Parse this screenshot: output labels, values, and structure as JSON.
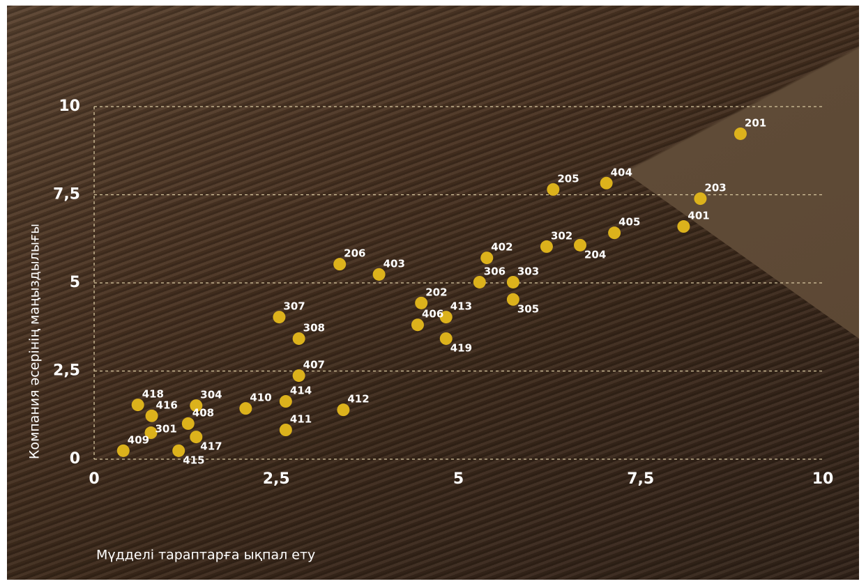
{
  "chart_data": {
    "type": "scatter",
    "x_label": "Мүдделі тараптарға ықпал ету",
    "y_label": "Компания әсерінің маңыздылығы",
    "point_labels": [
      "201",
      "205",
      "404",
      "203",
      "401",
      "405",
      "302",
      "204",
      "402",
      "206",
      "403",
      "306",
      "303",
      "305",
      "202",
      "413",
      "406",
      "419",
      "307",
      "308",
      "407",
      "418",
      "304",
      "416",
      "410",
      "414",
      "412",
      "408",
      "301",
      "417",
      "411",
      "409",
      "415"
    ],
    "x": [
      8.87,
      6.3,
      7.03,
      8.32,
      8.09,
      7.14,
      6.21,
      6.67,
      5.39,
      3.37,
      3.91,
      5.29,
      5.75,
      5.75,
      4.49,
      4.83,
      4.44,
      4.83,
      2.54,
      2.81,
      2.81,
      0.6,
      1.4,
      0.79,
      2.08,
      2.63,
      3.42,
      1.29,
      0.78,
      1.4,
      2.63,
      0.4,
      1.16
    ],
    "values": [
      9.23,
      7.65,
      7.83,
      7.39,
      6.6,
      6.42,
      6.03,
      6.07,
      5.71,
      5.53,
      5.24,
      5.02,
      5.02,
      4.53,
      4.43,
      4.03,
      3.81,
      3.42,
      4.03,
      3.42,
      2.37,
      1.54,
      1.52,
      1.23,
      1.44,
      1.64,
      1.4,
      1.01,
      0.75,
      0.63,
      0.83,
      0.24,
      0.24
    ],
    "color": "#dcb21c",
    "xlim": [
      0,
      10
    ],
    "ylim": [
      0,
      10
    ],
    "xticks": [
      0,
      {
        "value": 2.5,
        "label": "2,5"
      },
      5,
      {
        "value": 7.5,
        "label": "7,5"
      },
      10
    ],
    "yticks": [
      0,
      {
        "value": 2.5,
        "label": "2,5"
      },
      5,
      {
        "value": 7.5,
        "label": "7,5"
      },
      10
    ],
    "grid": true
  }
}
